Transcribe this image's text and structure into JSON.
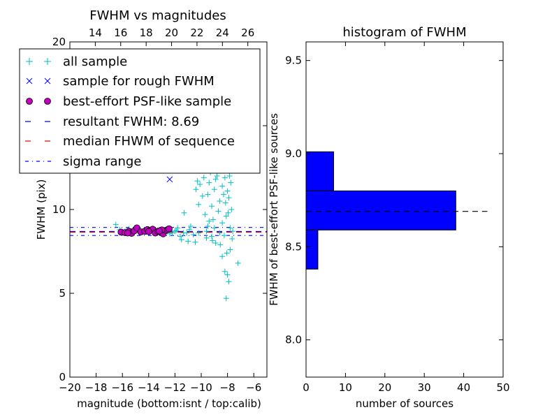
{
  "chart_data": [
    {
      "type": "scatter",
      "title": "FWHM vs magnitudes",
      "xlabel": "magnitude (bottom:isnt / top:calib)",
      "ylabel": "FWHM (pix)",
      "xlim": [
        -20,
        -5
      ],
      "ylim": [
        0,
        20
      ],
      "x_ticks": [
        -20,
        -18,
        -16,
        -14,
        -12,
        -10,
        -8,
        -6
      ],
      "x_tick_labels": [
        "−20",
        "−18",
        "−16",
        "−14",
        "−12",
        "−10",
        "−8",
        "−6"
      ],
      "y_ticks": [
        0,
        5,
        10,
        15,
        20
      ],
      "y_tick_labels": [
        "0",
        "5",
        "10",
        "15",
        "20"
      ],
      "top_xlim": [
        12,
        27.5
      ],
      "top_x_ticks": [
        14,
        16,
        18,
        20,
        22,
        24,
        26
      ],
      "top_x_tick_labels": [
        "14",
        "16",
        "18",
        "20",
        "22",
        "24",
        "26"
      ],
      "legend_position": "top-left",
      "series": [
        {
          "name": "all sample",
          "marker": "plus",
          "color": "#00BFBF",
          "points": [
            [
              -16.5,
              9.1
            ],
            [
              -16.2,
              8.8
            ],
            [
              -15.8,
              8.7
            ],
            [
              -15.5,
              8.85
            ],
            [
              -15.1,
              8.6
            ],
            [
              -14.8,
              8.9
            ],
            [
              -14.5,
              8.7
            ],
            [
              -14.2,
              8.65
            ],
            [
              -13.9,
              8.75
            ],
            [
              -13.6,
              8.8
            ],
            [
              -13.3,
              8.6
            ],
            [
              -13.0,
              8.7
            ],
            [
              -12.7,
              8.8
            ],
            [
              -12.4,
              8.55
            ],
            [
              -12.0,
              8.7
            ],
            [
              -11.8,
              8.9
            ],
            [
              -11.6,
              8.4
            ],
            [
              -11.5,
              8.2
            ],
            [
              -11.3,
              9.8
            ],
            [
              -11.1,
              8.6
            ],
            [
              -11.0,
              8.1
            ],
            [
              -10.9,
              8.8
            ],
            [
              -10.7,
              12.9
            ],
            [
              -10.6,
              8.5
            ],
            [
              -10.5,
              12.5
            ],
            [
              -10.4,
              11.2
            ],
            [
              -10.3,
              11.7
            ],
            [
              -10.2,
              8.6
            ],
            [
              -10.1,
              11.5
            ],
            [
              -10.0,
              12.9
            ],
            [
              -9.9,
              10.8
            ],
            [
              -9.8,
              13.0
            ],
            [
              -9.7,
              9.7
            ],
            [
              -9.6,
              8.3
            ],
            [
              -9.5,
              10.9
            ],
            [
              -9.4,
              11.6
            ],
            [
              -9.3,
              12.2
            ],
            [
              -9.2,
              10.2
            ],
            [
              -9.1,
              9.4
            ],
            [
              -9.0,
              11.2
            ],
            [
              -8.9,
              8.0
            ],
            [
              -8.8,
              12.0
            ],
            [
              -8.7,
              9.9
            ],
            [
              -8.6,
              10.5
            ],
            [
              -8.5,
              13.2
            ],
            [
              -8.4,
              9.2
            ],
            [
              -8.3,
              12.8
            ],
            [
              -8.2,
              11.9
            ],
            [
              -8.15,
              10.4
            ],
            [
              -8.1,
              9.6
            ],
            [
              -8.05,
              12.4
            ],
            [
              -8.0,
              11.1
            ],
            [
              -7.95,
              9.8
            ],
            [
              -7.9,
              10.7
            ],
            [
              -7.85,
              12.0
            ],
            [
              -7.8,
              8.9
            ],
            [
              -7.75,
              11.6
            ],
            [
              -7.7,
              10.0
            ],
            [
              -8.2,
              6.3
            ],
            [
              -8.0,
              6.1
            ],
            [
              -7.9,
              5.7
            ],
            [
              -8.1,
              4.7
            ],
            [
              -7.8,
              7.6
            ],
            [
              -7.2,
              6.8
            ],
            [
              -8.4,
              7.2
            ],
            [
              -8.6,
              8.6
            ],
            [
              -9.0,
              8.9
            ],
            [
              -9.2,
              8.4
            ],
            [
              -9.5,
              9.0
            ],
            [
              -8.9,
              11.8
            ],
            [
              -8.3,
              10.9
            ],
            [
              -8.7,
              12.6
            ],
            [
              -7.9,
              13.1
            ],
            [
              -8.4,
              11.4
            ],
            [
              -9.8,
              11.9
            ],
            [
              -10.2,
              10.3
            ],
            [
              -9.4,
              9.3
            ],
            [
              -11.9,
              8.75
            ],
            [
              -12.2,
              8.6
            ],
            [
              -10.8,
              9.0
            ],
            [
              -9.6,
              8.7
            ],
            [
              -8.25,
              8.45
            ],
            [
              -7.6,
              8.7
            ],
            [
              -8.55,
              7.9
            ],
            [
              -10.45,
              8.05
            ],
            [
              -11.35,
              8.6
            ],
            [
              -9.15,
              8.15
            ],
            [
              -8.05,
              7.4
            ],
            [
              -7.65,
              8.25
            ],
            [
              -8.9,
              13.0
            ]
          ]
        },
        {
          "name": "sample for rough FWHM",
          "marker": "x",
          "color": "#0000FF",
          "points": [
            [
              -12.4,
              11.8
            ]
          ]
        },
        {
          "name": "best-effort PSF-like sample",
          "marker": "circle",
          "color": "#BF00BF",
          "points": [
            [
              -16.1,
              8.65
            ],
            [
              -15.8,
              8.62
            ],
            [
              -15.5,
              8.7
            ],
            [
              -15.3,
              8.58
            ],
            [
              -15.1,
              8.72
            ],
            [
              -14.9,
              8.9
            ],
            [
              -14.6,
              8.66
            ],
            [
              -14.3,
              8.7
            ],
            [
              -14.1,
              8.8
            ],
            [
              -13.9,
              8.75
            ],
            [
              -13.7,
              8.82
            ],
            [
              -13.5,
              8.6
            ],
            [
              -13.3,
              8.7
            ],
            [
              -13.1,
              8.65
            ],
            [
              -12.9,
              8.55
            ],
            [
              -12.7,
              8.75
            ],
            [
              -12.55,
              8.8
            ],
            [
              -12.45,
              8.85
            ],
            [
              -13.0,
              8.78
            ],
            [
              -14.0,
              8.68
            ],
            [
              -15.6,
              8.6
            ],
            [
              -13.2,
              8.72
            ]
          ]
        }
      ],
      "reference_lines": [
        {
          "name": "resultant FWHM: 8.69",
          "style": "dashed",
          "color": "#0000FF",
          "y": 8.69
        },
        {
          "name": "median FHWM of sequence",
          "style": "dashed",
          "color": "#FF0000",
          "y": 8.69
        },
        {
          "name": "sigma range",
          "style": "dashdot",
          "color": "#0000FF",
          "y": [
            8.45,
            8.93
          ]
        }
      ]
    },
    {
      "type": "bar",
      "orientation": "horizontal",
      "title": "histogram of FWHM",
      "xlabel": "number of sources",
      "ylabel": "FWHM of best-effort PSF-like sources",
      "xlim": [
        0,
        50
      ],
      "ylim": [
        7.8,
        9.6
      ],
      "x_ticks": [
        0,
        10,
        20,
        30,
        40,
        50
      ],
      "x_tick_labels": [
        "0",
        "10",
        "20",
        "30",
        "40",
        "50"
      ],
      "y_ticks": [
        8.0,
        8.5,
        9.0,
        9.5
      ],
      "y_tick_labels": [
        "8.0",
        "8.5",
        "9.0",
        "9.5"
      ],
      "bar_color": "#0000FF",
      "bins": [
        {
          "y0": 8.38,
          "y1": 8.59,
          "count": 3
        },
        {
          "y0": 8.59,
          "y1": 8.8,
          "count": 38
        },
        {
          "y0": 8.8,
          "y1": 9.01,
          "count": 7
        }
      ],
      "reference_line": {
        "style": "dashed",
        "color": "#000000",
        "y": 8.69,
        "x_range": [
          0,
          46
        ]
      }
    }
  ]
}
